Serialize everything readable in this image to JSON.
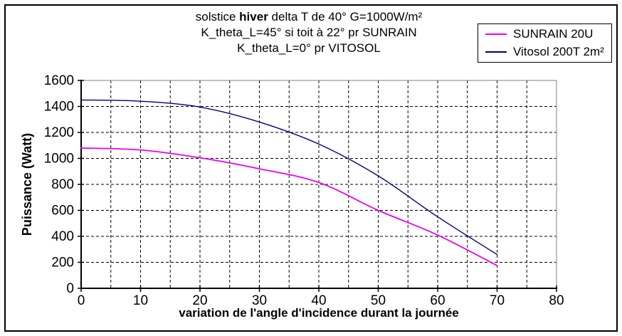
{
  "window": {
    "background": "#FFFFFF",
    "border_color": "#000000"
  },
  "title": {
    "line1_pre": "solstice ",
    "line1_bold": "hiver",
    "line1_post": " delta T de 40° G=1000W/m²",
    "line2": "K_theta_L=45° si toit à 22° pr SUNRAIN",
    "line3": "K_theta_L=0° pr VITOSOL"
  },
  "legend": {
    "position": "top-right",
    "border_color": "#000000",
    "items": [
      {
        "label": "SUNRAIN 20U",
        "color": "#EE00EE"
      },
      {
        "label": "Vitosol 200T 2m²",
        "color": "#000080"
      }
    ]
  },
  "chart_data": {
    "type": "line",
    "title": "solstice hiver delta T de 40° G=1000W/m²",
    "subtitle": "K_theta_L=45° si toit à 22° pr SUNRAIN — K_theta_L=0° pr VITOSOL",
    "xlabel": "variation de l'angle d'incidence durant la journée",
    "ylabel": "Puissance (Watt)",
    "x": [
      0,
      10,
      20,
      30,
      40,
      50,
      60,
      70
    ],
    "series": [
      {
        "name": "SUNRAIN 20U",
        "color": "#EE00EE",
        "stroke_width": 1.8,
        "values": [
          1080,
          1065,
          1005,
          920,
          815,
          600,
          410,
          175
        ]
      },
      {
        "name": "Vitosol 200T 2m²",
        "color": "#000080",
        "stroke_width": 1.4,
        "values": [
          1450,
          1440,
          1395,
          1280,
          1110,
          865,
          550,
          260
        ]
      }
    ],
    "xlim": [
      0,
      80
    ],
    "ylim": [
      0,
      1600
    ],
    "x_tick_step": 10,
    "y_tick_step": 200,
    "x_grid_step": 5,
    "y_grid_step": 200,
    "x_tick_labels": [
      "0",
      "10",
      "20",
      "30",
      "40",
      "50",
      "60",
      "70",
      "80"
    ],
    "y_tick_labels": [
      "0",
      "200",
      "400",
      "600",
      "800",
      "1000",
      "1200",
      "1400",
      "1600"
    ],
    "grid": "dashed",
    "grid_color": "#000000",
    "plot_border_color": "#808080",
    "axis_color": "#000000",
    "legend_position": "top-right",
    "line_style": "smooth"
  }
}
